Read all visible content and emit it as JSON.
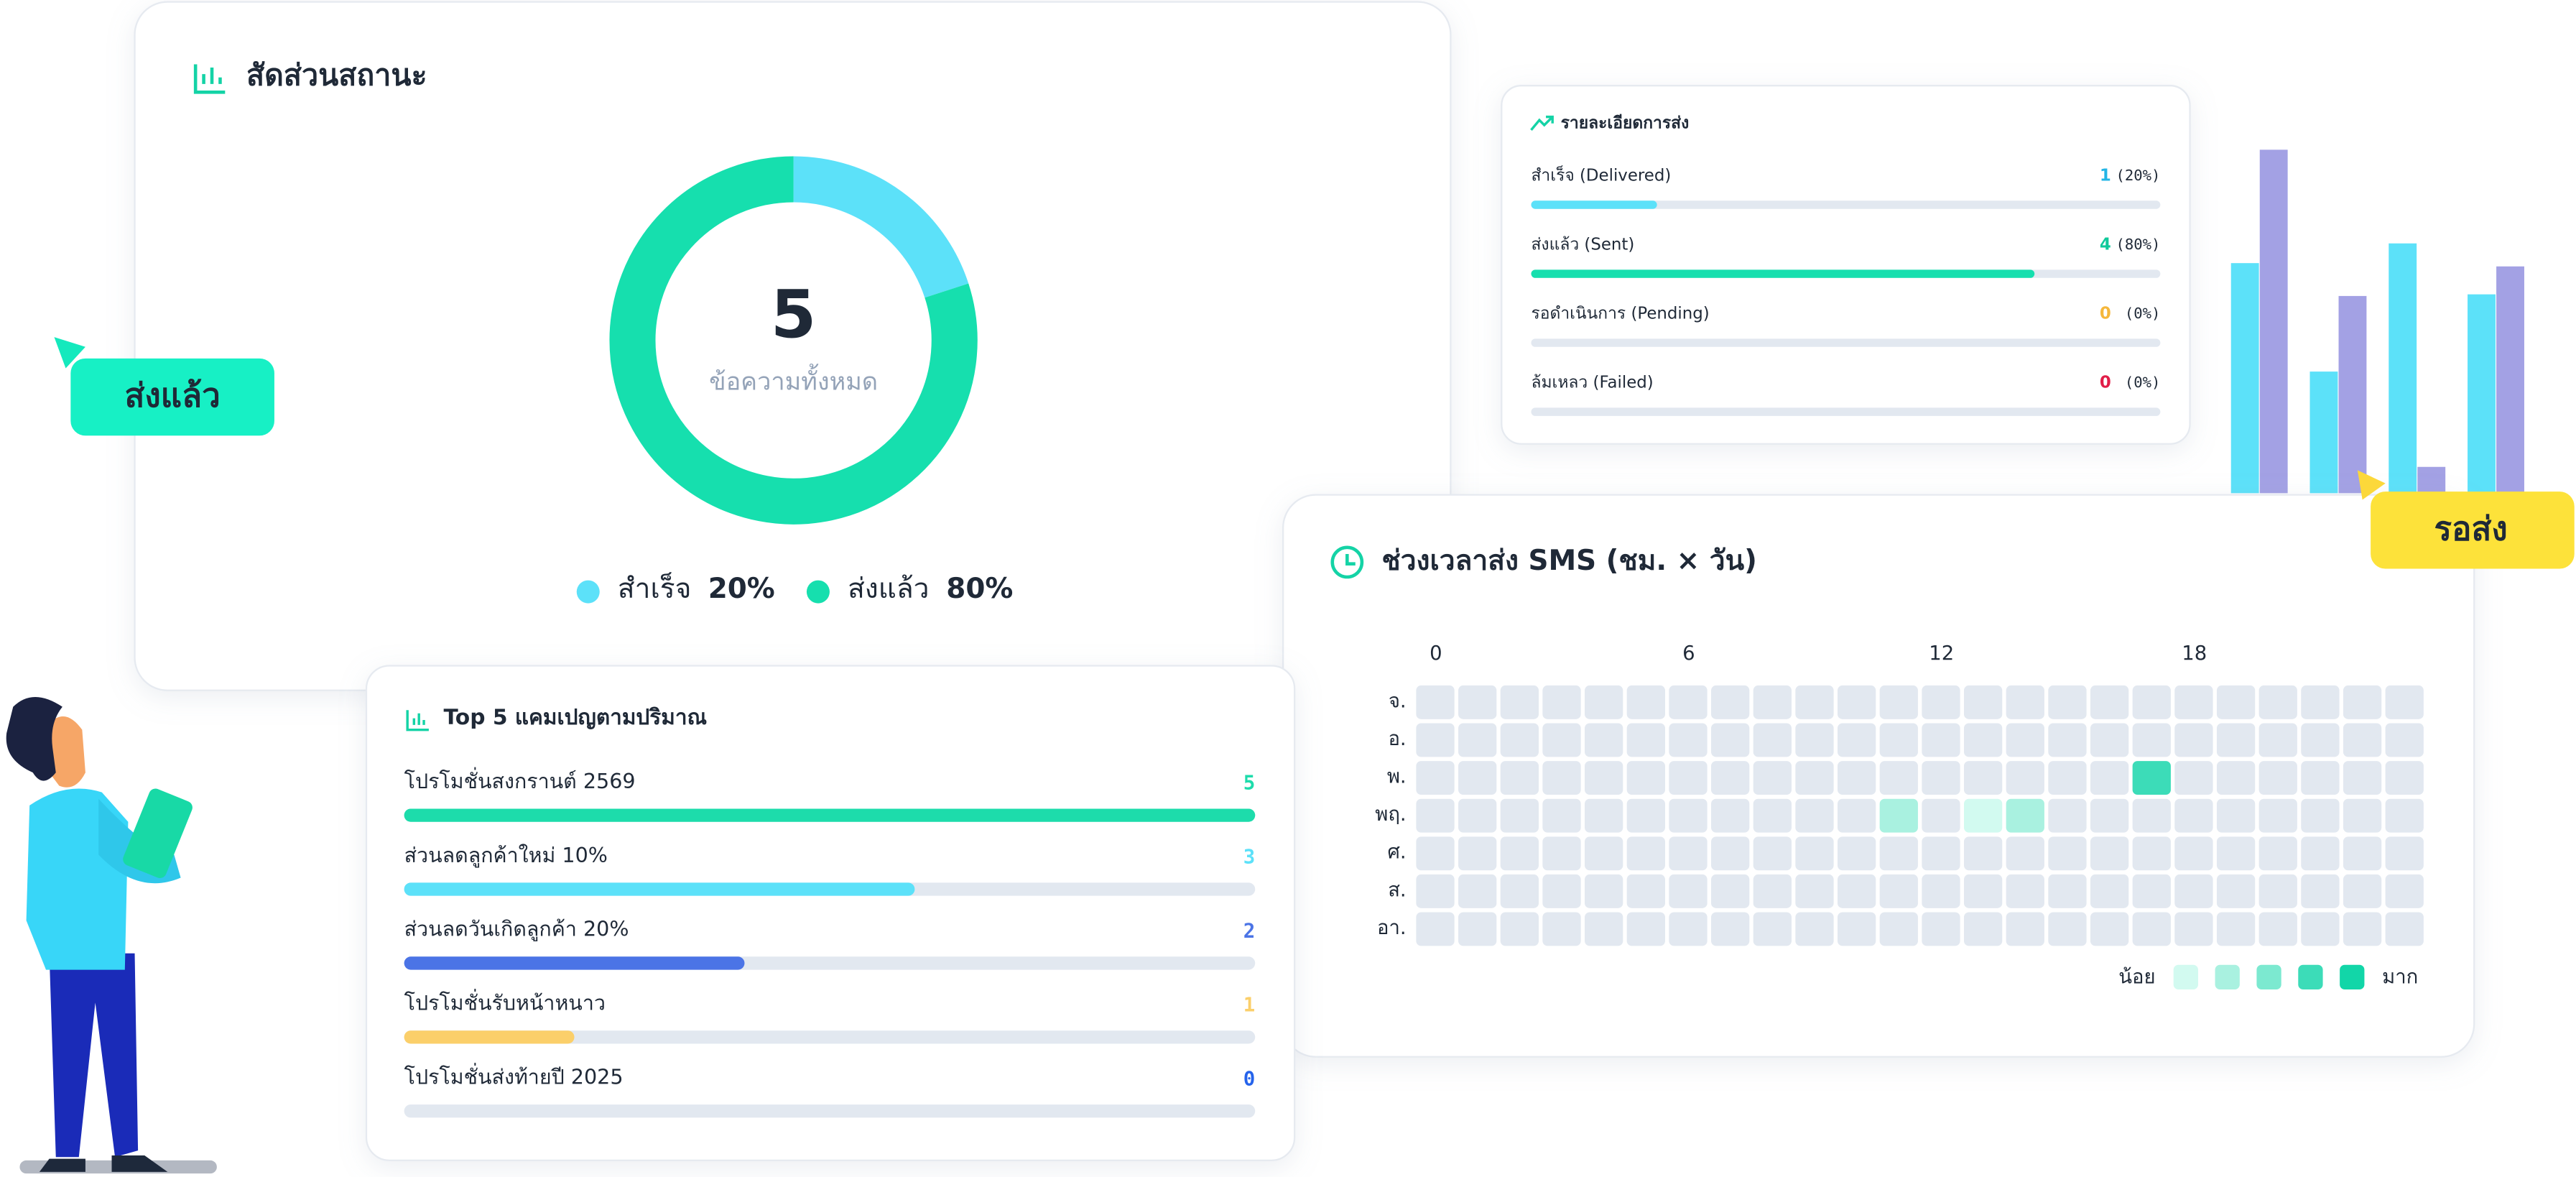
{
  "status_card": {
    "title": "สัดส่วนสถานะ",
    "total": 5,
    "total_label": "ข้อความทั้งหมด",
    "segments": [
      {
        "label": "สำเร็จ",
        "value": 20,
        "value_label": "20%",
        "color": "#5ce1f9"
      },
      {
        "label": "ส่งแล้ว",
        "value": 80,
        "value_label": "80%",
        "color": "#16dfae"
      }
    ]
  },
  "sent_badge": "ส่งแล้ว",
  "pending_badge": "รอส่ง",
  "delivery_card": {
    "title": "รายละเอียดการส่ง",
    "xlim": [
      0,
      100
    ],
    "rows": [
      {
        "label": "สำเร็จ (Delivered)",
        "count": 1,
        "percent": 20,
        "percent_label": "(20%)",
        "color": "#22b5e6",
        "bar_color": "#5ce1f9"
      },
      {
        "label": "ส่งแล้ว (Sent)",
        "count": 4,
        "percent": 80,
        "percent_label": "(80%)",
        "color": "#10c99b",
        "bar_color": "#16dfae"
      },
      {
        "label": "รอดำเนินการ (Pending)",
        "count": 0,
        "percent": 0,
        "percent_label": "(0%)",
        "color": "#f5b73b",
        "bar_color": "#f5b73b"
      },
      {
        "label": "ล้มเหลว (Failed)",
        "count": 0,
        "percent": 0,
        "percent_label": "(0%)",
        "color": "#e11d48",
        "bar_color": "#e11d48"
      }
    ]
  },
  "campaign_card": {
    "title": "Top 5 แคมเปญตามปริมาณ",
    "xlim": [
      0,
      5
    ],
    "rows": [
      {
        "label": "โปรโมชั่นสงกรานต์ 2569",
        "value": 5,
        "color": "#1ddcab"
      },
      {
        "label": "ส่วนลดลูกค้าใหม่ 10%",
        "value": 3,
        "color": "#5ce1f9"
      },
      {
        "label": "ส่วนลดวันเกิดลูกค้า 20%",
        "value": 2,
        "color": "#4b74e6"
      },
      {
        "label": "โปรโมชั่นรับหน้าหนาว",
        "value": 1,
        "color": "#fbcf6a"
      },
      {
        "label": "โปรโมชั่นส่งท้ายปี 2025",
        "value": 0,
        "color": "#2563eb"
      }
    ]
  },
  "heatmap_card": {
    "title": "ช่วงเวลาส่ง SMS (ชม. × วัน)",
    "hour_ticks": [
      0,
      6,
      12,
      18
    ],
    "days": [
      "จ.",
      "อ.",
      "พ.",
      "พฤ.",
      "ศ.",
      "ส.",
      "อา."
    ],
    "values": [
      [
        0,
        0,
        0,
        0,
        0,
        0,
        0,
        0,
        0,
        0,
        0,
        0,
        0,
        0,
        0,
        0,
        0,
        0,
        0,
        0,
        0,
        0,
        0,
        0
      ],
      [
        0,
        0,
        0,
        0,
        0,
        0,
        0,
        0,
        0,
        0,
        0,
        0,
        0,
        0,
        0,
        0,
        0,
        0,
        0,
        0,
        0,
        0,
        0,
        0
      ],
      [
        0,
        0,
        0,
        0,
        0,
        0,
        0,
        0,
        0,
        0,
        0,
        0,
        0,
        0,
        0,
        0,
        0,
        4,
        0,
        0,
        0,
        0,
        0,
        0
      ],
      [
        0,
        0,
        0,
        0,
        0,
        0,
        0,
        0,
        0,
        0,
        0,
        2,
        0,
        1,
        2,
        0,
        0,
        0,
        0,
        0,
        0,
        0,
        0,
        0
      ],
      [
        0,
        0,
        0,
        0,
        0,
        0,
        0,
        0,
        0,
        0,
        0,
        0,
        0,
        0,
        0,
        0,
        0,
        0,
        0,
        0,
        0,
        0,
        0,
        0
      ],
      [
        0,
        0,
        0,
        0,
        0,
        0,
        0,
        0,
        0,
        0,
        0,
        0,
        0,
        0,
        0,
        0,
        0,
        0,
        0,
        0,
        0,
        0,
        0,
        0
      ],
      [
        0,
        0,
        0,
        0,
        0,
        0,
        0,
        0,
        0,
        0,
        0,
        0,
        0,
        0,
        0,
        0,
        0,
        0,
        0,
        0,
        0,
        0,
        0,
        0
      ]
    ],
    "colors": [
      "#e2e8f0",
      "#d2faf0",
      "#a9f1e0",
      "#7ce9d0",
      "#3cdcb8",
      "#12d6a8"
    ],
    "legend_low": "น้อย",
    "legend_high": "มาก"
  },
  "deco_chart": {
    "type": "bar",
    "categories": [
      null,
      null,
      null,
      null
    ],
    "ylim": [
      0,
      210
    ],
    "series": [
      {
        "color": "#5ce1f9",
        "values": [
          140,
          74,
          152,
          121
        ]
      },
      {
        "color": "#a3a1e4",
        "values": [
          209,
          120,
          16,
          138
        ]
      }
    ]
  }
}
